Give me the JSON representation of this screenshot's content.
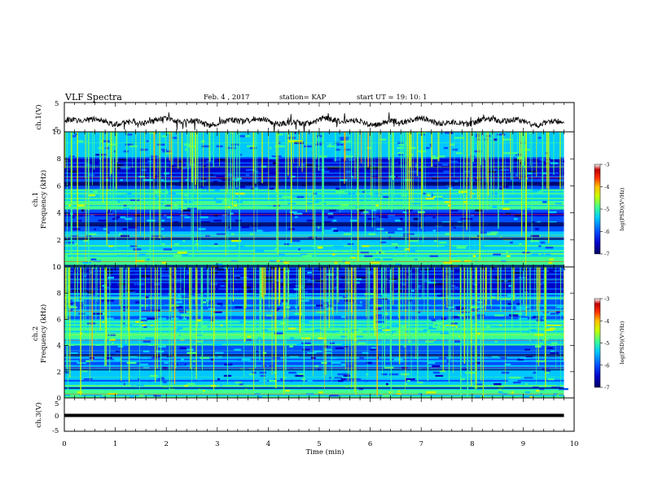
{
  "header": {
    "title": "VLF Spectra",
    "date": "Feb. 4 , 2017",
    "station": "station= KAP",
    "start": "start  UT =   19: 10: 1"
  },
  "colors": {
    "colormap": [
      "#000060",
      "#0000c8",
      "#0050ff",
      "#00c8ff",
      "#40ff90",
      "#c8ff00",
      "#ffc000",
      "#ff3000",
      "#c00000",
      "#ffffff"
    ],
    "trace": "#000000",
    "axis": "#000000"
  },
  "chart_data": [
    {
      "type": "line",
      "name": "ch1-waveform",
      "ylabel": "ch.1(V)",
      "xlim": [
        0,
        10
      ],
      "ylim": [
        -5,
        5
      ],
      "yticks": [
        "5",
        "-5"
      ],
      "x_end": 9.8,
      "approx_level_v": -1.5,
      "approx_amplitude_v": 1.5
    },
    {
      "type": "heatmap",
      "name": "ch1-spectrogram",
      "ylabel_top": "ch.1",
      "ylabel": "Frequency  (kHz)",
      "xlim": [
        0,
        10
      ],
      "ylim": [
        0,
        10
      ],
      "yticks": [
        "10",
        "8",
        "6",
        "4",
        "2",
        "0"
      ],
      "x_end": 9.8,
      "colorbar": {
        "label": "log(PSD)(V²/Hz)",
        "ticks": [
          "-3",
          "-4",
          "-5",
          "-6",
          "-7"
        ],
        "range": [
          -7,
          -3
        ]
      }
    },
    {
      "type": "heatmap",
      "name": "ch2-spectrogram",
      "ylabel_top": "ch.2",
      "ylabel": "Frequency  (kHz)",
      "xlim": [
        0,
        10
      ],
      "ylim": [
        0,
        10
      ],
      "yticks": [
        "10",
        "8",
        "6",
        "4",
        "2",
        "0"
      ],
      "x_end": 9.8,
      "colorbar": {
        "label": "log(PSD)(V²/Hz)",
        "ticks": [
          "-3",
          "-4",
          "-5",
          "-6",
          "-7"
        ],
        "range": [
          -7,
          -3
        ]
      }
    },
    {
      "type": "line",
      "name": "ch3-waveform",
      "ylabel": "ch.3(V)",
      "xlabel": "Time  (min)",
      "xlim": [
        0,
        10
      ],
      "ylim": [
        -5,
        5
      ],
      "yticks": [
        "5",
        "0",
        "-5"
      ],
      "xticks": [
        "0",
        "1",
        "2",
        "3",
        "4",
        "5",
        "6",
        "7",
        "8",
        "9",
        "10"
      ],
      "x_end": 9.8,
      "constant_value_v": 0
    }
  ]
}
